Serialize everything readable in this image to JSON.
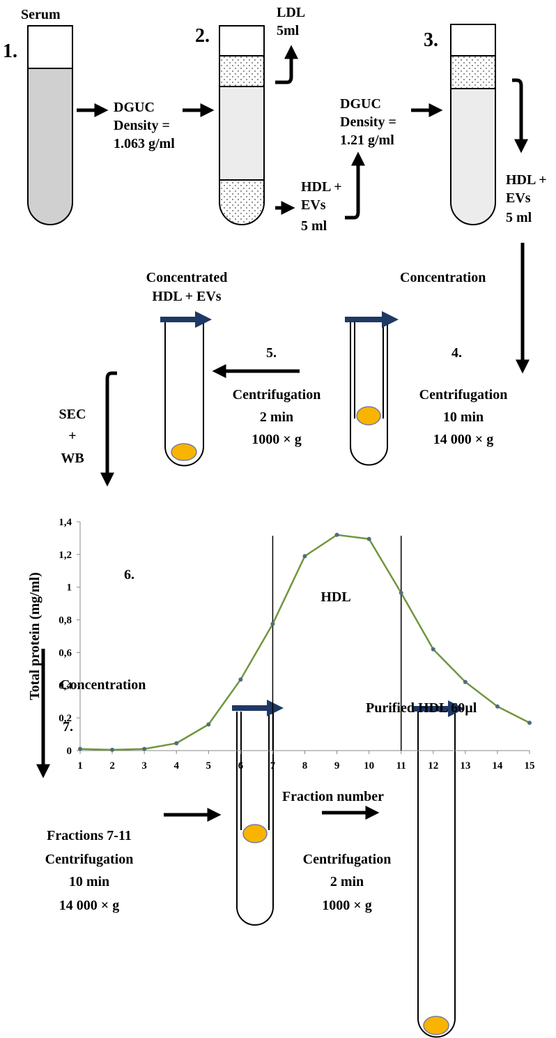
{
  "steps": {
    "s1": {
      "label": "1.",
      "sample": "Serum"
    },
    "dguc1": {
      "method": "DGUC",
      "lines": [
        "Density =",
        "1.063 g/ml"
      ]
    },
    "s2": {
      "label": "2.",
      "top": [
        "LDL",
        "5ml"
      ],
      "bottom": [
        "HDL +",
        "EVs",
        "5 ml"
      ]
    },
    "dguc2": {
      "method": "DGUC",
      "lines": [
        "Density =",
        "1.21 g/ml"
      ]
    },
    "s3": {
      "label": "3.",
      "bottom": [
        "HDL +",
        "EVs",
        "5 ml"
      ]
    },
    "conc1": "Concentration",
    "s4": {
      "label": "4.",
      "lines": [
        "Centrifugation",
        "10 min",
        "14 000 × g"
      ]
    },
    "s5": {
      "label": "5.",
      "lines": [
        "Centrifugation",
        "2 min",
        "1000 × g"
      ],
      "product": [
        "Concentrated",
        "HDL + EVs"
      ]
    },
    "sec": [
      "SEC",
      "+",
      "WB"
    ],
    "s7": {
      "label": "7.",
      "step": "Concentration",
      "lines": [
        "Fractions 7-11",
        "Centrifugation",
        "10 min",
        "14 000 × g"
      ],
      "lines2": [
        "Centrifugation",
        "2 min",
        "1000 × g"
      ],
      "product": "Purified HDL 60µl"
    }
  },
  "chart_data": {
    "type": "line",
    "label": "6.",
    "annotation": "HDL",
    "x_label": "Fraction number",
    "y_label": "Total protein (mg/ml)",
    "x": [
      1,
      2,
      3,
      4,
      5,
      6,
      7,
      8,
      9,
      10,
      11,
      12,
      13,
      14,
      15
    ],
    "values": [
      0.01,
      0.005,
      0.01,
      0.045,
      0.16,
      0.435,
      0.775,
      1.19,
      1.32,
      1.295,
      0.965,
      0.62,
      0.42,
      0.27,
      0.17
    ],
    "color": "#70963c",
    "marker_color": "#4f6d7a",
    "xlim": [
      1,
      15
    ],
    "xticks": [
      1,
      2,
      3,
      4,
      5,
      6,
      7,
      8,
      9,
      10,
      11,
      12,
      13,
      14,
      15
    ],
    "ylim": [
      0,
      1.4
    ],
    "yticks": [
      0,
      {
        "value": 0.2,
        "label": "0,2"
      },
      {
        "value": 0.4,
        "label": "0,4"
      },
      {
        "value": 0.6,
        "label": "0,6"
      },
      {
        "value": 0.8,
        "label": "0,8"
      },
      1,
      {
        "value": 1.2,
        "label": "1,2"
      },
      {
        "value": 1.4,
        "label": "1,4"
      }
    ],
    "vlines": [
      7,
      11
    ],
    "grid": false
  }
}
